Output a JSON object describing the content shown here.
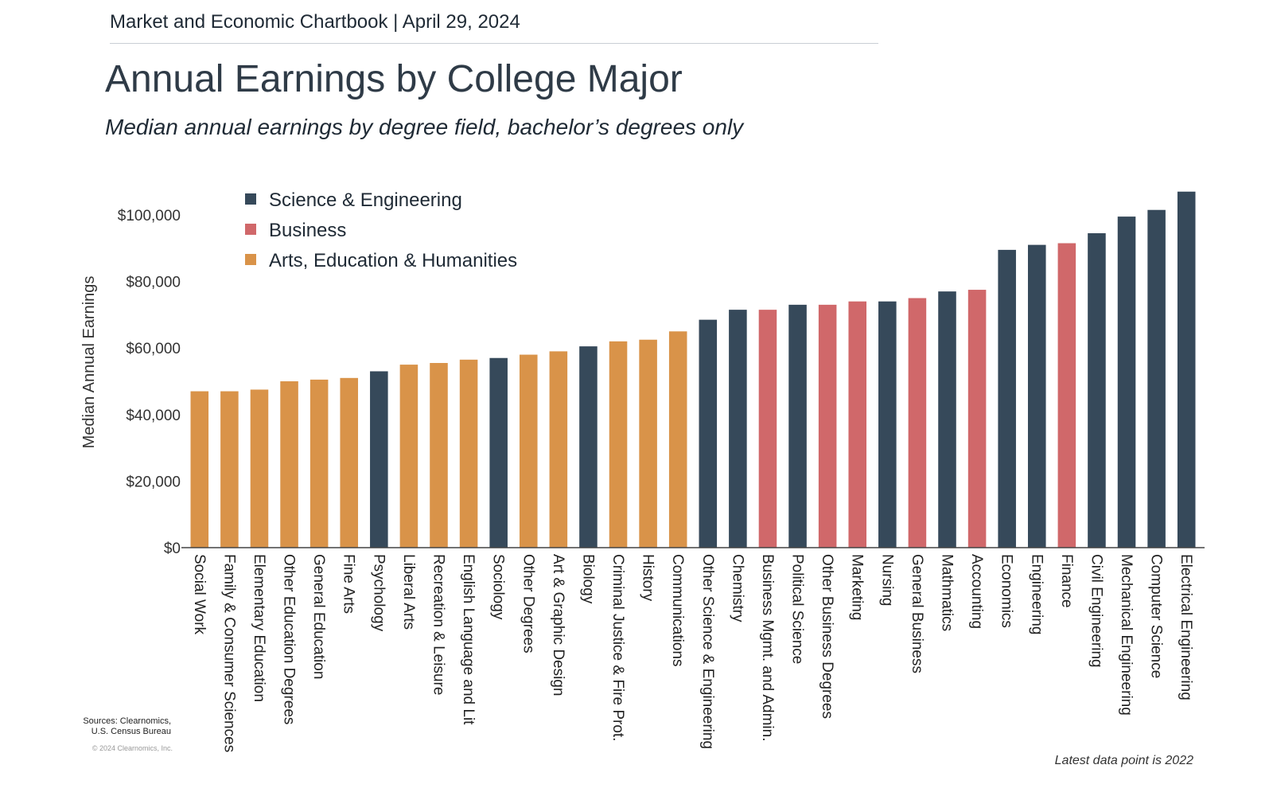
{
  "header": "Market and Economic Chartbook | April 29, 2024",
  "colors": {
    "Science & Engineering": "#36495a",
    "Business": "#d0686a",
    "Arts, Education & Humanities": "#d99349"
  },
  "chart_data": {
    "type": "bar",
    "title": "Annual Earnings by College Major",
    "subtitle": "Median annual earnings by degree field, bachelor’s degrees only",
    "xlabel": "",
    "ylabel": "Median Annual Earnings",
    "ylim": [
      0,
      100000
    ],
    "yticks": [
      0,
      20000,
      40000,
      60000,
      80000,
      100000
    ],
    "ytick_labels": [
      "$0",
      "$20,000",
      "$40,000",
      "$60,000",
      "$80,000",
      "$100,000"
    ],
    "grid": false,
    "legend": [
      "Science & Engineering",
      "Business",
      "Arts, Education & Humanities"
    ],
    "legend_position": "top-left",
    "categories": [
      "Social Work",
      "Family & Consumer Sciences",
      "Elementary Education",
      "Other Education Degrees",
      "General Education",
      "Fine Arts",
      "Psychology",
      "Liberal Arts",
      "Recreation & Leisure",
      "English Language and Lit",
      "Sociology",
      "Other Degrees",
      "Art & Graphic Design",
      "Biology",
      "Criminal Justice & Fire Prot.",
      "History",
      "Communications",
      "Other Science & Engineering",
      "Chemistry",
      "Business Mgmt. and Admin.",
      "Political Science",
      "Other Business Degrees",
      "Marketing",
      "Nursing",
      "General Business",
      "Mathmatics",
      "Accounting",
      "Economics",
      "Engineering",
      "Finance",
      "Civil Engineering",
      "Mechanical Engineering",
      "Computer Science",
      "Electrical Engineering"
    ],
    "values": [
      47000,
      47000,
      47500,
      50000,
      50500,
      51000,
      53000,
      55000,
      55500,
      56500,
      57000,
      58000,
      59000,
      60500,
      62000,
      62500,
      65000,
      68500,
      71500,
      71500,
      73000,
      73000,
      74000,
      74000,
      75000,
      77000,
      77500,
      89500,
      91000,
      91500,
      94500,
      99500,
      101500,
      107000
    ],
    "groups": [
      "Arts, Education & Humanities",
      "Arts, Education & Humanities",
      "Arts, Education & Humanities",
      "Arts, Education & Humanities",
      "Arts, Education & Humanities",
      "Arts, Education & Humanities",
      "Science & Engineering",
      "Arts, Education & Humanities",
      "Arts, Education & Humanities",
      "Arts, Education & Humanities",
      "Science & Engineering",
      "Arts, Education & Humanities",
      "Arts, Education & Humanities",
      "Science & Engineering",
      "Arts, Education & Humanities",
      "Arts, Education & Humanities",
      "Arts, Education & Humanities",
      "Science & Engineering",
      "Science & Engineering",
      "Business",
      "Science & Engineering",
      "Business",
      "Business",
      "Science & Engineering",
      "Business",
      "Science & Engineering",
      "Business",
      "Science & Engineering",
      "Science & Engineering",
      "Business",
      "Science & Engineering",
      "Science & Engineering",
      "Science & Engineering",
      "Science & Engineering"
    ]
  },
  "sources_line1": "Sources: Clearnomics,",
  "sources_line2": "U.S. Census Bureau",
  "copyright": "© 2024 Clearnomics, Inc.",
  "footnote": "Latest data point is 2022"
}
